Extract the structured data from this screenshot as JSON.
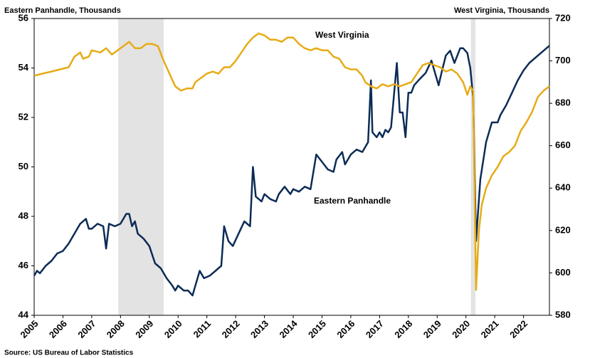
{
  "chart_data": {
    "type": "line",
    "left_axis_title": "Eastern Panhandle, Thousands",
    "right_axis_title": "West Virginia, Thousands",
    "source": "Source: US Bureau of Labor Statistics",
    "annotations": [
      "West Virginia",
      "Eastern Panhandle"
    ],
    "xlim": [
      2005,
      2022.9
    ],
    "xticks": [
      2005,
      2006,
      2007,
      2008,
      2009,
      2010,
      2011,
      2012,
      2013,
      2014,
      2015,
      2016,
      2017,
      2018,
      2019,
      2020,
      2021,
      2022
    ],
    "ylim": [
      44,
      56
    ],
    "yticks": [
      44,
      46,
      48,
      50,
      52,
      54,
      56
    ],
    "y2lim": [
      580,
      720
    ],
    "y2ticks": [
      580,
      600,
      620,
      640,
      660,
      680,
      700,
      720
    ],
    "recessions": [
      [
        2007.92,
        2009.5
      ],
      [
        2020.17,
        2020.33
      ]
    ],
    "recession_color": "#e3e3e3",
    "series": [
      {
        "name": "Eastern Panhandle",
        "color": "#0c2c56",
        "axis": "y",
        "x": [
          2005.0,
          2005.1,
          2005.2,
          2005.4,
          2005.6,
          2005.8,
          2006.0,
          2006.2,
          2006.4,
          2006.6,
          2006.8,
          2006.9,
          2007.0,
          2007.2,
          2007.4,
          2007.5,
          2007.6,
          2007.8,
          2008.0,
          2008.2,
          2008.3,
          2008.4,
          2008.5,
          2008.6,
          2008.8,
          2009.0,
          2009.2,
          2009.4,
          2009.6,
          2009.8,
          2009.9,
          2010.0,
          2010.2,
          2010.35,
          2010.5,
          2010.6,
          2010.75,
          2010.9,
          2011.1,
          2011.3,
          2011.5,
          2011.6,
          2011.75,
          2011.9,
          2012.1,
          2012.3,
          2012.5,
          2012.6,
          2012.7,
          2012.9,
          2013.0,
          2013.2,
          2013.4,
          2013.5,
          2013.7,
          2013.9,
          2014.0,
          2014.2,
          2014.4,
          2014.6,
          2014.8,
          2015.0,
          2015.2,
          2015.4,
          2015.5,
          2015.7,
          2015.8,
          2016.0,
          2016.2,
          2016.4,
          2016.6,
          2016.7,
          2016.75,
          2016.9,
          2017.0,
          2017.1,
          2017.2,
          2017.3,
          2017.4,
          2017.6,
          2017.7,
          2017.8,
          2017.9,
          2018.0,
          2018.1,
          2018.2,
          2018.35,
          2018.6,
          2018.8,
          2019.05,
          2019.15,
          2019.3,
          2019.45,
          2019.6,
          2019.7,
          2019.8,
          2019.9,
          2020.05,
          2020.15,
          2020.25,
          2020.35,
          2020.5,
          2020.7,
          2020.9,
          2021.1,
          2021.2,
          2021.4,
          2021.6,
          2021.8,
          2022.0,
          2022.2,
          2022.5,
          2022.9
        ],
        "values": [
          45.6,
          45.8,
          45.7,
          46.0,
          46.2,
          46.5,
          46.6,
          46.9,
          47.3,
          47.7,
          47.9,
          47.5,
          47.5,
          47.7,
          47.6,
          46.7,
          47.7,
          47.6,
          47.7,
          48.1,
          48.1,
          47.6,
          47.8,
          47.3,
          47.1,
          46.8,
          46.1,
          45.9,
          45.5,
          45.2,
          45.0,
          45.2,
          45.0,
          45.0,
          44.8,
          45.2,
          45.8,
          45.5,
          45.6,
          45.8,
          46.0,
          47.6,
          47.0,
          46.8,
          47.3,
          47.8,
          47.6,
          50.0,
          48.8,
          48.6,
          48.9,
          48.7,
          48.6,
          48.9,
          49.2,
          48.9,
          49.1,
          49.0,
          49.2,
          49.1,
          50.5,
          50.2,
          49.9,
          49.8,
          50.3,
          50.6,
          50.1,
          50.5,
          50.7,
          50.6,
          51.0,
          53.5,
          51.4,
          51.2,
          51.4,
          51.2,
          51.5,
          51.4,
          51.6,
          54.2,
          52.2,
          52.2,
          51.2,
          53.0,
          53.0,
          53.3,
          53.5,
          53.8,
          54.3,
          53.3,
          53.8,
          54.5,
          54.7,
          54.2,
          54.5,
          54.8,
          54.8,
          54.6,
          54.0,
          52.8,
          47.0,
          49.5,
          51.0,
          51.8,
          51.8,
          52.1,
          52.5,
          53.0,
          53.5,
          53.9,
          54.2,
          54.5,
          54.9
        ]
      },
      {
        "name": "West Virginia",
        "color": "#e6ab16",
        "axis": "y2",
        "x": [
          2005.0,
          2005.3,
          2005.6,
          2005.9,
          2006.2,
          2006.4,
          2006.6,
          2006.7,
          2006.9,
          2007.0,
          2007.3,
          2007.5,
          2007.7,
          2007.9,
          2008.1,
          2008.3,
          2008.5,
          2008.7,
          2008.9,
          2009.1,
          2009.3,
          2009.5,
          2009.7,
          2009.9,
          2010.1,
          2010.3,
          2010.5,
          2010.6,
          2010.8,
          2011.0,
          2011.2,
          2011.4,
          2011.6,
          2011.8,
          2012.0,
          2012.2,
          2012.4,
          2012.6,
          2012.8,
          2013.0,
          2013.2,
          2013.4,
          2013.6,
          2013.8,
          2014.0,
          2014.2,
          2014.4,
          2014.6,
          2014.8,
          2015.0,
          2015.2,
          2015.4,
          2015.6,
          2015.8,
          2016.0,
          2016.2,
          2016.4,
          2016.5,
          2016.7,
          2016.9,
          2017.1,
          2017.3,
          2017.5,
          2017.7,
          2017.9,
          2018.1,
          2018.3,
          2018.5,
          2018.7,
          2018.9,
          2019.1,
          2019.3,
          2019.5,
          2019.7,
          2019.9,
          2020.05,
          2020.15,
          2020.25,
          2020.35,
          2020.45,
          2020.55,
          2020.7,
          2020.9,
          2021.1,
          2021.3,
          2021.5,
          2021.7,
          2021.9,
          2022.1,
          2022.3,
          2022.5,
          2022.7,
          2022.9
        ],
        "values": [
          693,
          694,
          695,
          696,
          697,
          702,
          704,
          701,
          702,
          705,
          704,
          706,
          703,
          705,
          707,
          709,
          706,
          706,
          708,
          708,
          707,
          700,
          694,
          688,
          686,
          687,
          687,
          690,
          692,
          694,
          695,
          694,
          697,
          697,
          700,
          704,
          708,
          711,
          713,
          712,
          710,
          710,
          709,
          711,
          711,
          708,
          706,
          705,
          706,
          705,
          705,
          702,
          701,
          697,
          696,
          696,
          693,
          690,
          688,
          687,
          689,
          688,
          689,
          688,
          689,
          690,
          694,
          698,
          699,
          698,
          697,
          695,
          696,
          694,
          690,
          684,
          688,
          686,
          592,
          620,
          632,
          640,
          646,
          650,
          655,
          657,
          660,
          667,
          671,
          676,
          683,
          686,
          688
        ]
      }
    ]
  }
}
